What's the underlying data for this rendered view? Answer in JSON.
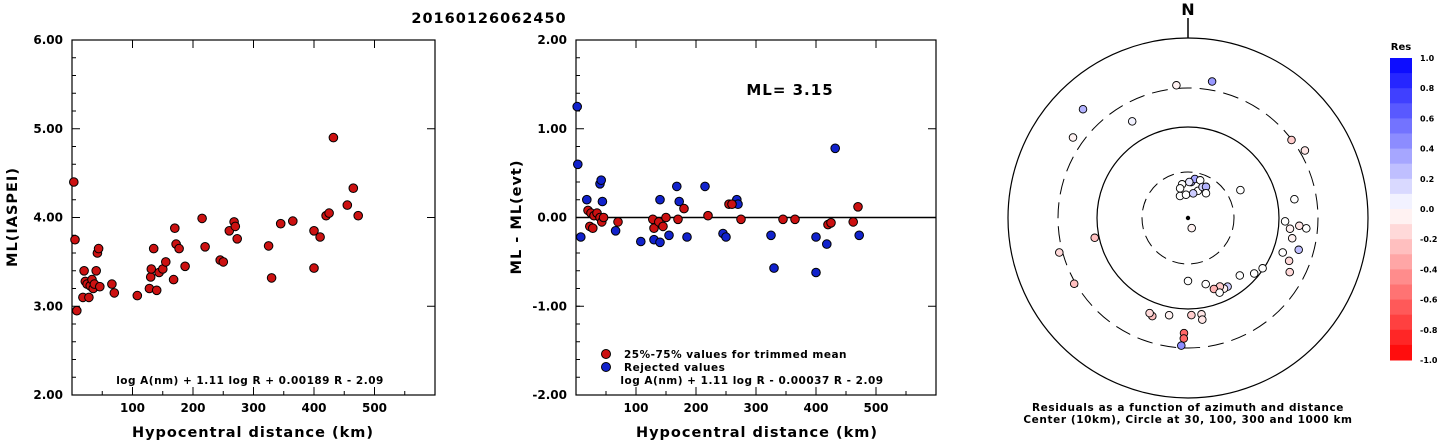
{
  "event_id": "20160126062450",
  "colors": {
    "accepted": "#cc1111",
    "rejected": "#1122cc",
    "axis": "#000000"
  },
  "chart_data": [
    {
      "type": "scatter",
      "name": "ml-vs-distance",
      "xlabel": "Hypocentral distance (km)",
      "ylabel": "ML(IASPEI)",
      "xlim": [
        0,
        600
      ],
      "ylim": [
        2.0,
        6.0
      ],
      "xticks": [
        "100",
        "200",
        "300",
        "400",
        "500"
      ],
      "yticks": [
        "2.00",
        "3.00",
        "4.00",
        "5.00",
        "6.00"
      ],
      "formula": "log A(nm) + 1.11 log R + 0.00189 R - 2.09",
      "points": [
        [
          3,
          4.4
        ],
        [
          5,
          3.75
        ],
        [
          8,
          2.95
        ],
        [
          18,
          3.1
        ],
        [
          20,
          3.4
        ],
        [
          22,
          3.28
        ],
        [
          25,
          3.25
        ],
        [
          28,
          3.1
        ],
        [
          30,
          3.23
        ],
        [
          33,
          3.3
        ],
        [
          35,
          3.2
        ],
        [
          37,
          3.25
        ],
        [
          40,
          3.4
        ],
        [
          42,
          3.6
        ],
        [
          44,
          3.65
        ],
        [
          46,
          3.22
        ],
        [
          66,
          3.25
        ],
        [
          70,
          3.15
        ],
        [
          108,
          3.12
        ],
        [
          128,
          3.2
        ],
        [
          130,
          3.33
        ],
        [
          131,
          3.42
        ],
        [
          135,
          3.65
        ],
        [
          140,
          3.18
        ],
        [
          144,
          3.38
        ],
        [
          150,
          3.42
        ],
        [
          155,
          3.5
        ],
        [
          168,
          3.3
        ],
        [
          170,
          3.88
        ],
        [
          172,
          3.7
        ],
        [
          177,
          3.65
        ],
        [
          187,
          3.45
        ],
        [
          215,
          3.99
        ],
        [
          220,
          3.67
        ],
        [
          245,
          3.52
        ],
        [
          250,
          3.5
        ],
        [
          260,
          3.85
        ],
        [
          268,
          3.95
        ],
        [
          270,
          3.9
        ],
        [
          273,
          3.76
        ],
        [
          325,
          3.68
        ],
        [
          330,
          3.32
        ],
        [
          345,
          3.93
        ],
        [
          365,
          3.96
        ],
        [
          400,
          3.43
        ],
        [
          400,
          3.85
        ],
        [
          410,
          3.78
        ],
        [
          420,
          4.02
        ],
        [
          425,
          4.05
        ],
        [
          432,
          4.9
        ],
        [
          455,
          4.14
        ],
        [
          465,
          4.33
        ],
        [
          473,
          4.02
        ]
      ]
    },
    {
      "type": "scatter",
      "name": "residual-vs-distance",
      "xlabel": "Hypocentral distance (km)",
      "ylabel": "ML - ML(evt)",
      "xlim": [
        0,
        600
      ],
      "ylim": [
        -2.0,
        2.0
      ],
      "xticks": [
        "100",
        "200",
        "300",
        "400",
        "500"
      ],
      "yticks": [
        "-2.00",
        "-1.00",
        "0.00",
        "1.00",
        "2.00"
      ],
      "annotation": "ML= 3.15",
      "formula": "log A(nm) + 1.11 log R - 0.00037 R - 2.09",
      "legend": [
        "25%-75% values for trimmed mean",
        "Rejected values"
      ],
      "series": [
        {
          "name": "25%-75% values for trimmed mean",
          "points": [
            [
              20,
              0.08
            ],
            [
              23,
              -0.1
            ],
            [
              25,
              0.05
            ],
            [
              28,
              -0.12
            ],
            [
              30,
              0.02
            ],
            [
              35,
              0.05
            ],
            [
              40,
              0.0
            ],
            [
              43,
              -0.05
            ],
            [
              46,
              0.0
            ],
            [
              70,
              -0.05
            ],
            [
              128,
              -0.02
            ],
            [
              130,
              -0.12
            ],
            [
              138,
              -0.05
            ],
            [
              145,
              -0.1
            ],
            [
              150,
              0.0
            ],
            [
              170,
              -0.02
            ],
            [
              180,
              0.1
            ],
            [
              220,
              0.02
            ],
            [
              255,
              0.15
            ],
            [
              260,
              0.15
            ],
            [
              275,
              -0.02
            ],
            [
              345,
              -0.02
            ],
            [
              365,
              -0.02
            ],
            [
              420,
              -0.08
            ],
            [
              425,
              -0.06
            ],
            [
              462,
              -0.05
            ],
            [
              470,
              0.12
            ]
          ]
        },
        {
          "name": "Rejected values",
          "points": [
            [
              2,
              1.25
            ],
            [
              3,
              0.6
            ],
            [
              8,
              -0.22
            ],
            [
              18,
              0.2
            ],
            [
              40,
              0.38
            ],
            [
              42,
              0.42
            ],
            [
              44,
              0.18
            ],
            [
              66,
              -0.15
            ],
            [
              108,
              -0.27
            ],
            [
              130,
              -0.25
            ],
            [
              140,
              -0.28
            ],
            [
              140,
              0.2
            ],
            [
              155,
              -0.2
            ],
            [
              168,
              0.35
            ],
            [
              172,
              0.18
            ],
            [
              185,
              -0.22
            ],
            [
              215,
              0.35
            ],
            [
              245,
              -0.18
            ],
            [
              250,
              -0.22
            ],
            [
              268,
              0.2
            ],
            [
              270,
              0.15
            ],
            [
              325,
              -0.2
            ],
            [
              330,
              -0.57
            ],
            [
              400,
              -0.22
            ],
            [
              400,
              -0.62
            ],
            [
              418,
              -0.3
            ],
            [
              432,
              0.78
            ],
            [
              472,
              -0.2
            ]
          ]
        }
      ]
    },
    {
      "type": "polar-scatter",
      "name": "residual-azimuth-map",
      "north_label": "N",
      "caption_1": "Residuals as a function of azimuth and distance",
      "caption_2": "Center (10km), Circle at 30, 100, 300 and 1000 km",
      "colorbar_title": "Res",
      "colorbar_ticks": [
        "1.0",
        "0.8",
        "0.6",
        "0.4",
        "0.2",
        "0.0",
        "-0.2",
        "-0.4",
        "-0.6",
        "-0.8",
        "-1.0"
      ],
      "colorbar_range": [
        -1.0,
        1.0
      ],
      "points": [
        {
          "az": 355,
          "r": 0.74,
          "res": -0.05
        },
        {
          "az": 10,
          "r": 0.77,
          "res": 0.4
        },
        {
          "az": 316,
          "r": 0.84,
          "res": 0.3
        },
        {
          "az": 330,
          "r": 0.62,
          "res": 0.05
        },
        {
          "az": 305,
          "r": 0.78,
          "res": -0.05
        },
        {
          "az": 53,
          "r": 0.72,
          "res": -0.2
        },
        {
          "az": 80,
          "r": 0.6,
          "res": 0.0
        },
        {
          "az": 62,
          "r": 0.33,
          "res": 0.0
        },
        {
          "az": 60,
          "r": 0.75,
          "res": -0.1
        },
        {
          "az": 258,
          "r": 0.53,
          "res": -0.25
        },
        {
          "az": 255,
          "r": 0.74,
          "res": -0.15
        },
        {
          "az": 240,
          "r": 0.73,
          "res": -0.25
        },
        {
          "az": 94,
          "r": 0.62,
          "res": -0.1
        },
        {
          "az": 92,
          "r": 0.54,
          "res": 0.0
        },
        {
          "az": 96,
          "r": 0.57,
          "res": -0.05
        },
        {
          "az": 95,
          "r": 0.66,
          "res": 0.0
        },
        {
          "az": 101,
          "r": 0.59,
          "res": -0.05
        },
        {
          "az": 110,
          "r": 0.56,
          "res": 0.0
        },
        {
          "az": 113,
          "r": 0.61,
          "res": -0.15
        },
        {
          "az": 118,
          "r": 0.64,
          "res": -0.15
        },
        {
          "az": 106,
          "r": 0.64,
          "res": 0.25
        },
        {
          "az": 124,
          "r": 0.5,
          "res": 0.0
        },
        {
          "az": 130,
          "r": 0.48,
          "res": 0.0
        },
        {
          "az": 138,
          "r": 0.43,
          "res": 0.0
        },
        {
          "az": 150,
          "r": 0.44,
          "res": 0.2
        },
        {
          "az": 153,
          "r": 0.44,
          "res": -0.05
        },
        {
          "az": 155,
          "r": 0.42,
          "res": -0.2
        },
        {
          "az": 160,
          "r": 0.42,
          "res": -0.3
        },
        {
          "az": 157,
          "r": 0.45,
          "res": 0.0
        },
        {
          "az": 165,
          "r": 0.38,
          "res": 0.0
        },
        {
          "az": 172,
          "r": 0.54,
          "res": -0.1
        },
        {
          "az": 172,
          "r": 0.57,
          "res": -0.1
        },
        {
          "az": 178,
          "r": 0.54,
          "res": -0.2
        },
        {
          "az": 182,
          "r": 0.64,
          "res": -0.6
        },
        {
          "az": 182,
          "r": 0.67,
          "res": -0.6
        },
        {
          "az": 183,
          "r": 0.71,
          "res": 0.45
        },
        {
          "az": 191,
          "r": 0.55,
          "res": -0.05
        },
        {
          "az": 200,
          "r": 0.58,
          "res": -0.25
        },
        {
          "az": 202,
          "r": 0.57,
          "res": -0.15
        },
        {
          "az": 180,
          "r": 0.35,
          "res": 0.0
        },
        {
          "az": 160,
          "r": 0.06,
          "res": -0.05
        },
        {
          "az": 5,
          "r": 0.2,
          "res": 0.35
        },
        {
          "az": 10,
          "r": 0.22,
          "res": 0.35
        },
        {
          "az": 2,
          "r": 0.2,
          "res": 0.1
        },
        {
          "az": 350,
          "r": 0.19,
          "res": 0.0
        },
        {
          "az": 18,
          "r": 0.22,
          "res": 0.0
        },
        {
          "az": 345,
          "r": 0.17,
          "res": 0.0
        },
        {
          "az": 20,
          "r": 0.16,
          "res": 0.0
        },
        {
          "az": 25,
          "r": 0.19,
          "res": 0.15
        },
        {
          "az": 30,
          "r": 0.2,
          "res": 0.3
        },
        {
          "az": 36,
          "r": 0.17,
          "res": 0.0
        },
        {
          "az": 340,
          "r": 0.13,
          "res": 0.0
        },
        {
          "az": 355,
          "r": 0.13,
          "res": 0.0
        },
        {
          "az": 12,
          "r": 0.14,
          "res": 0.2
        }
      ]
    }
  ]
}
